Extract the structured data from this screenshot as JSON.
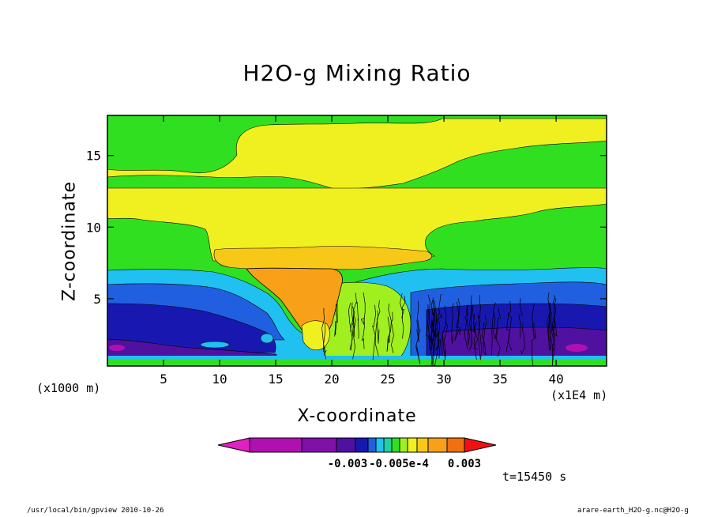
{
  "chart_data": {
    "type": "heatmap",
    "title": "H2O-g Mixing Ratio",
    "xlabel": "X-coordinate",
    "ylabel": "Z-coordinate",
    "x_unit_left": "(x1000 m)",
    "x_unit_right": "(x1E4 m)",
    "xlim": [
      0,
      44.5
    ],
    "ylim": [
      0.3,
      17.8
    ],
    "x_ticks": [
      5,
      10,
      15,
      20,
      25,
      30,
      35,
      40
    ],
    "y_ticks": [
      5,
      10,
      15
    ],
    "colorbar": {
      "colors": [
        "#e020c0",
        "#b010b0",
        "#8010a8",
        "#5010a0",
        "#1818b0",
        "#2060e0",
        "#20c0f0",
        "#20d0a0",
        "#30e020",
        "#a0f020",
        "#f0f020",
        "#f8c818",
        "#f8a018",
        "#f07010",
        "#f01010"
      ],
      "labels": [
        "-0.003",
        "-0.005e-4",
        "0.003"
      ]
    },
    "time_label": "t=15450 s",
    "footer_left": "/usr/local/bin/gpview  2010-10-26",
    "footer_right": "arare-earth_H2O-g.nc@H2O-g"
  }
}
